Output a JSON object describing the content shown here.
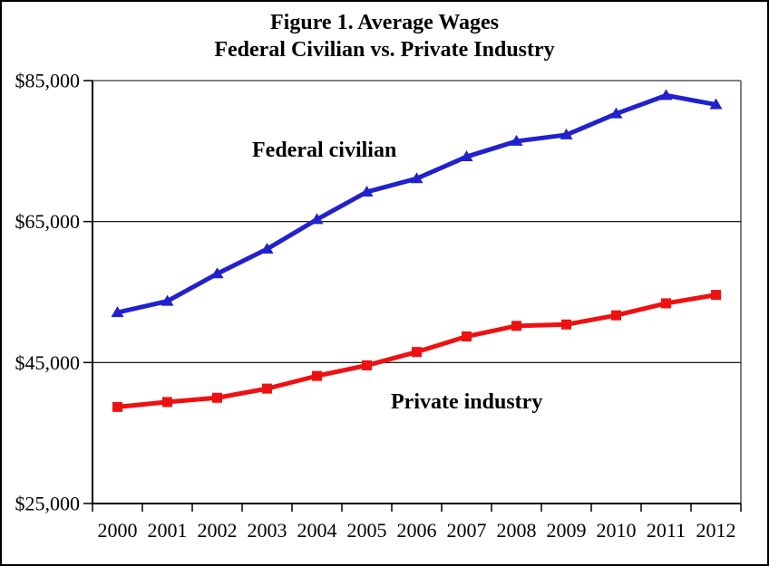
{
  "figure": {
    "background": "#FFFFFF",
    "outer_border_color": "#000000",
    "plot_border_color": "#808080",
    "axis_color": "#000000",
    "gridline_color": "#000000"
  },
  "chart_data": {
    "type": "line",
    "title": "Figure 1. Average Wages",
    "subtitle": "Federal Civilian vs. Private Industry",
    "categories": [
      "2000",
      "2001",
      "2002",
      "2003",
      "2004",
      "2005",
      "2006",
      "2007",
      "2008",
      "2009",
      "2010",
      "2011",
      "2012"
    ],
    "series": [
      {
        "name": "Federal civilian",
        "color": "#2121CE",
        "marker": "triangle",
        "values": [
          52100,
          53700,
          57600,
          61100,
          65300,
          69200,
          71100,
          74200,
          76400,
          77300,
          80300,
          82900,
          81600
        ]
      },
      {
        "name": "Private industry",
        "color": "#EE1111",
        "marker": "square",
        "values": [
          38700,
          39400,
          40000,
          41300,
          43100,
          44600,
          46500,
          48700,
          50200,
          50400,
          51700,
          53400,
          54600
        ]
      }
    ],
    "ylim": [
      25000,
      85000
    ],
    "yticks": [
      {
        "value": 25000,
        "label": "$25,000"
      },
      {
        "value": 45000,
        "label": "$45,000"
      },
      {
        "value": 65000,
        "label": "$65,000"
      },
      {
        "value": 85000,
        "label": "$85,000"
      }
    ],
    "grid": "horizontal-at-yticks",
    "legend_position": "none-inline-annotations"
  }
}
